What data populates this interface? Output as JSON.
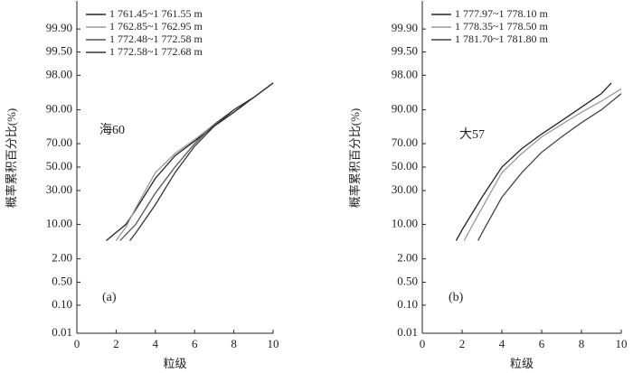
{
  "chart_data": [
    {
      "type": "line",
      "yscale": "probability",
      "xlabel": "粒级",
      "ylabel": "概率累积百分比(%)",
      "annotations": [
        "海60",
        "(a)"
      ],
      "xlim": [
        0,
        10
      ],
      "xticks": [
        0,
        2,
        4,
        6,
        8,
        10
      ],
      "ylim": [
        0.01,
        99.99
      ],
      "yticks": [
        0.01,
        {
          "value": 0.1,
          "label": "0.10"
        },
        {
          "value": 0.5,
          "label": "0.50"
        },
        {
          "value": 2,
          "label": "2.00"
        },
        {
          "value": 10,
          "label": "10.00"
        },
        {
          "value": 30,
          "label": "30.00"
        },
        {
          "value": 50,
          "label": "50.00"
        },
        {
          "value": 70,
          "label": "70.00"
        },
        {
          "value": 90,
          "label": "90.00"
        },
        {
          "value": 98,
          "label": "98.00"
        },
        {
          "value": 99.5,
          "label": "99.50"
        },
        {
          "value": 99.9,
          "label": "99.90"
        }
      ],
      "series": [
        {
          "name": "1 761.45~1 761.55 m",
          "color": "#222222",
          "x": [
            1.5,
            2.5,
            3,
            4,
            5,
            6,
            7,
            8,
            9,
            10
          ],
          "values": [
            5,
            10,
            17,
            40,
            60,
            72,
            82,
            89,
            94,
            97
          ]
        },
        {
          "name": "1 762.85~1 762.95 m",
          "color": "#999999",
          "x": [
            2.0,
            2.5,
            3,
            4,
            5,
            6,
            7,
            8,
            9,
            10
          ],
          "values": [
            5,
            9,
            18,
            45,
            62,
            73,
            83,
            90,
            94,
            97
          ]
        },
        {
          "name": "1 772.48~1 772.58 m",
          "color": "#555555",
          "x": [
            2.2,
            3,
            4,
            5,
            6,
            7,
            8,
            9,
            10
          ],
          "values": [
            5,
            10,
            28,
            50,
            70,
            83,
            90,
            94,
            97
          ]
        },
        {
          "name": "1 772.58~1 772.68 m",
          "color": "#333333",
          "x": [
            2.7,
            3,
            4,
            5,
            6,
            7,
            8,
            9,
            10
          ],
          "values": [
            5,
            7,
            20,
            45,
            68,
            82,
            90,
            94,
            97
          ]
        }
      ]
    },
    {
      "type": "line",
      "yscale": "probability",
      "xlabel": "粒级",
      "ylabel": "概率累积百分比(%)",
      "annotations": [
        "大57",
        "(b)"
      ],
      "xlim": [
        0,
        10
      ],
      "xticks": [
        0,
        2,
        4,
        6,
        8,
        10
      ],
      "ylim": [
        0.01,
        99.99
      ],
      "yticks": [
        0.01,
        {
          "value": 0.1,
          "label": "0.10"
        },
        {
          "value": 0.5,
          "label": "0.50"
        },
        {
          "value": 2,
          "label": "2.00"
        },
        {
          "value": 10,
          "label": "10.00"
        },
        {
          "value": 30,
          "label": "30.00"
        },
        {
          "value": 50,
          "label": "50.00"
        },
        {
          "value": 70,
          "label": "70.00"
        },
        {
          "value": 90,
          "label": "90.00"
        },
        {
          "value": 98,
          "label": "98.00"
        },
        {
          "value": 99.5,
          "label": "99.50"
        },
        {
          "value": 99.9,
          "label": "99.90"
        }
      ],
      "series": [
        {
          "name": "1 777.97~1 778.10 m",
          "color": "#222222",
          "x": [
            1.7,
            2,
            3,
            4,
            5,
            6,
            7,
            8,
            9,
            9.5
          ],
          "values": [
            5,
            8,
            25,
            50,
            66,
            77,
            85,
            91,
            95,
            97
          ]
        },
        {
          "name": "1 778.35~1 778.50 m",
          "color": "#999999",
          "x": [
            2.1,
            3,
            4,
            5,
            6,
            7,
            8,
            9,
            10
          ],
          "values": [
            5,
            18,
            45,
            62,
            75,
            83,
            89,
            93,
            96
          ]
        },
        {
          "name": "1 781.70~1 781.80 m",
          "color": "#444444",
          "x": [
            2.8,
            3,
            4,
            5,
            6,
            7,
            8,
            9,
            10
          ],
          "values": [
            5,
            7,
            25,
            45,
            63,
            75,
            84,
            90,
            95
          ]
        }
      ]
    }
  ]
}
